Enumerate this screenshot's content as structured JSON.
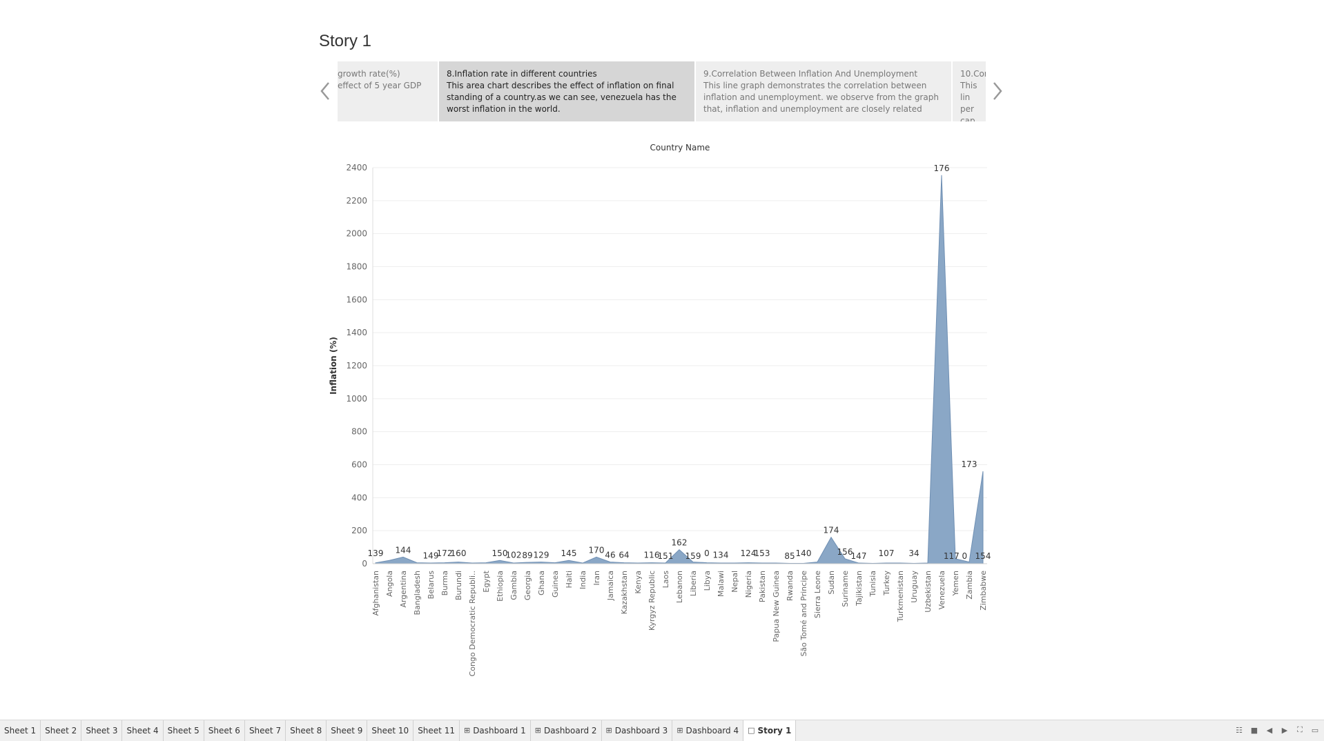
{
  "story": {
    "title": "Story 1"
  },
  "captions": [
    {
      "id": "cap-7",
      "title": "growth rate(%)",
      "body": "effect of 5 year GDP",
      "active": false
    },
    {
      "id": "cap-8",
      "title": "8.Inflation rate in different countries",
      "body": "This area chart describes the effect of inflation on final standing of a country.as we can see, venezuela has the worst inflation in the world.",
      "active": true
    },
    {
      "id": "cap-9",
      "title": "9.Correlation Between Inflation And Unemployment",
      "body": "This line graph demonstrates the correlation between inflation and unemployment. we observe from the graph that, inflation and unemployment are closely related",
      "active": false
    },
    {
      "id": "cap-10",
      "title": "10.Cor",
      "body": "This lin per cap",
      "active": false
    }
  ],
  "chart_data": {
    "type": "area",
    "title": "Country Name",
    "ylabel": "Inflation (%)",
    "ylim": [
      0,
      2400
    ],
    "yticks": [
      0,
      200,
      400,
      600,
      800,
      1000,
      1200,
      1400,
      1600,
      1800,
      2000,
      2200,
      2400
    ],
    "color": "#8aa7c6",
    "categories": [
      "Afghanistan",
      "Angola",
      "Argentina",
      "Bangladesh",
      "Belarus",
      "Burma",
      "Burundi",
      "Congo Democratic Republi..",
      "Egypt",
      "Ethiopia",
      "Gambia",
      "Georgia",
      "Ghana",
      "Guinea",
      "Haiti",
      "India",
      "Iran",
      "Jamaica",
      "Kazakhstan",
      "Kenya",
      "Kyrgyz Republic",
      "Laos",
      "Lebanon",
      "Liberia",
      "Libya",
      "Malawi",
      "Nepal",
      "Nigeria",
      "Pakistan",
      "Papua New Guinea",
      "Rwanda",
      "São Tomé and Principe",
      "Sierra Leone",
      "Sudan",
      "Suriname",
      "Tajikistan",
      "Tunisia",
      "Turkey",
      "Turkmenistan",
      "Uruguay",
      "Uzbekistan",
      "Venezuela",
      "Yemen",
      "Zambia",
      "Zimbabwe"
    ],
    "values": [
      5,
      20,
      40,
      6,
      4,
      6,
      10,
      4,
      6,
      20,
      4,
      8,
      10,
      6,
      20,
      4,
      40,
      10,
      6,
      4,
      6,
      4,
      85,
      10,
      6,
      4,
      4,
      6,
      4,
      4,
      2,
      2,
      10,
      160,
      30,
      4,
      2,
      4,
      4,
      2,
      4,
      2355,
      30,
      10,
      560
    ],
    "labels": [
      "139",
      "",
      "144",
      "",
      "149",
      "172",
      "160",
      "",
      "",
      "150",
      "102",
      "89",
      "129",
      "",
      "145",
      "",
      "170",
      "46",
      "64",
      "",
      "116",
      "151",
      "162",
      "159",
      "0",
      "134",
      "",
      "124",
      "153",
      "",
      "85",
      "140",
      "",
      "174",
      "156",
      "147",
      "",
      "107",
      "",
      "34",
      "",
      "176",
      "117 0",
      "173",
      "154"
    ],
    "label_values": [
      20,
      null,
      40,
      null,
      6,
      20,
      20,
      null,
      null,
      20,
      10,
      8,
      10,
      null,
      20,
      null,
      40,
      10,
      10,
      null,
      10,
      4,
      85,
      4,
      20,
      10,
      null,
      20,
      20,
      null,
      5,
      20,
      null,
      160,
      30,
      4,
      null,
      20,
      null,
      20,
      null,
      2355,
      4,
      560,
      4
    ],
    "grid": true
  },
  "tabs": [
    {
      "label": "Sheet 1",
      "icon": "",
      "active": false
    },
    {
      "label": "Sheet 2",
      "icon": "",
      "active": false
    },
    {
      "label": "Sheet 3",
      "icon": "",
      "active": false
    },
    {
      "label": "Sheet 4",
      "icon": "",
      "active": false
    },
    {
      "label": "Sheet 5",
      "icon": "",
      "active": false
    },
    {
      "label": "Sheet 6",
      "icon": "",
      "active": false
    },
    {
      "label": "Sheet 7",
      "icon": "",
      "active": false
    },
    {
      "label": "Sheet 8",
      "icon": "",
      "active": false
    },
    {
      "label": "Sheet 9",
      "icon": "",
      "active": false
    },
    {
      "label": "Sheet 10",
      "icon": "",
      "active": false
    },
    {
      "label": "Sheet 11",
      "icon": "",
      "active": false
    },
    {
      "label": "Dashboard 1",
      "icon": "dashboard-icon",
      "active": false
    },
    {
      "label": "Dashboard 2",
      "icon": "dashboard-icon",
      "active": false
    },
    {
      "label": "Dashboard 3",
      "icon": "dashboard-icon",
      "active": false
    },
    {
      "label": "Dashboard 4",
      "icon": "dashboard-icon",
      "active": false
    },
    {
      "label": "Story 1",
      "icon": "story-icon",
      "active": true
    }
  ],
  "controls": [
    "grid-view-icon",
    "filmstrip-icon",
    "prev-sheet-icon",
    "next-sheet-icon",
    "fullscreen-icon",
    "presentation-icon"
  ]
}
